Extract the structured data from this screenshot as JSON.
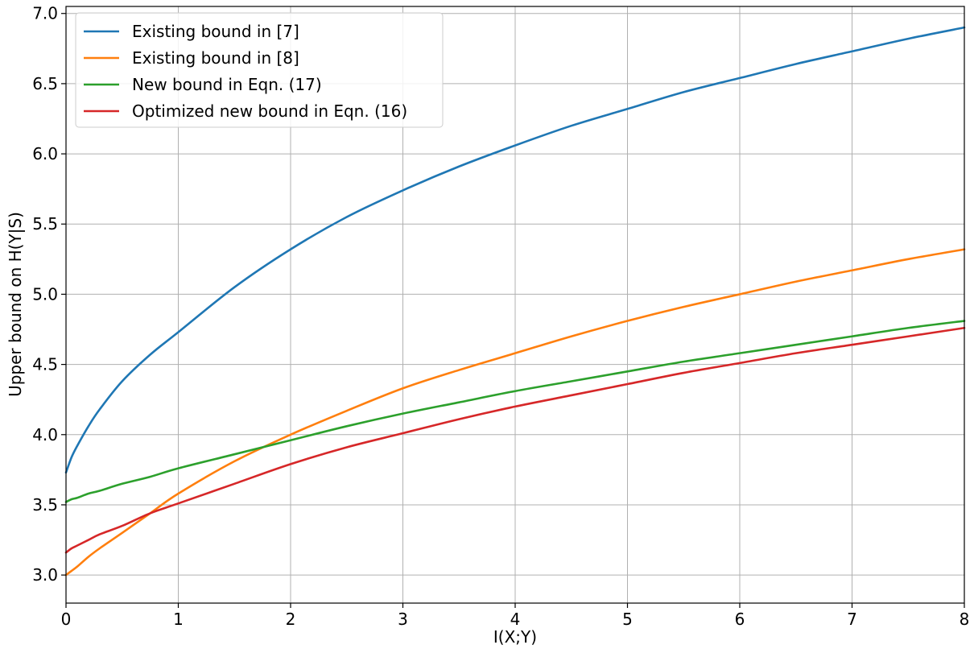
{
  "chart_data": {
    "type": "line",
    "title": "",
    "xlabel": "I(X;Y)",
    "ylabel": "Upper bound on H(Y|S)",
    "xlim": [
      0,
      8
    ],
    "ylim": [
      2.8,
      7.05
    ],
    "xticks": [
      0,
      1,
      2,
      3,
      4,
      5,
      6,
      7,
      8
    ],
    "yticks": [
      3.0,
      3.5,
      4.0,
      4.5,
      5.0,
      5.5,
      6.0,
      6.5,
      7.0
    ],
    "grid": true,
    "legend_position": "top-left",
    "x": [
      0,
      0.05,
      0.1,
      0.2,
      0.3,
      0.5,
      0.75,
      1,
      1.5,
      2,
      2.5,
      3,
      3.5,
      4,
      4.5,
      5,
      5.5,
      6,
      6.5,
      7,
      7.5,
      8
    ],
    "series": [
      {
        "name": "Existing bound in [7]",
        "color": "#1f77b4",
        "values": [
          3.73,
          3.84,
          3.92,
          4.06,
          4.18,
          4.38,
          4.57,
          4.73,
          5.05,
          5.32,
          5.55,
          5.74,
          5.91,
          6.06,
          6.2,
          6.32,
          6.44,
          6.54,
          6.64,
          6.73,
          6.82,
          6.9
        ]
      },
      {
        "name": "Existing bound in [8]",
        "color": "#ff7f0e",
        "values": [
          3.0,
          3.03,
          3.06,
          3.13,
          3.19,
          3.3,
          3.44,
          3.58,
          3.81,
          4.0,
          4.17,
          4.33,
          4.46,
          4.58,
          4.7,
          4.81,
          4.91,
          5.0,
          5.09,
          5.17,
          5.25,
          5.32
        ]
      },
      {
        "name": "New bound in Eqn. (17)",
        "color": "#2ca02c",
        "values": [
          3.52,
          3.54,
          3.55,
          3.58,
          3.6,
          3.65,
          3.7,
          3.76,
          3.86,
          3.96,
          4.06,
          4.15,
          4.23,
          4.31,
          4.38,
          4.45,
          4.52,
          4.58,
          4.64,
          4.7,
          4.76,
          4.81
        ]
      },
      {
        "name": "Optimized new bound in Eqn. (16)",
        "color": "#d62728",
        "values": [
          3.16,
          3.19,
          3.21,
          3.25,
          3.29,
          3.35,
          3.44,
          3.51,
          3.65,
          3.79,
          3.91,
          4.01,
          4.11,
          4.2,
          4.28,
          4.36,
          4.44,
          4.51,
          4.58,
          4.64,
          4.7,
          4.76
        ]
      }
    ]
  }
}
